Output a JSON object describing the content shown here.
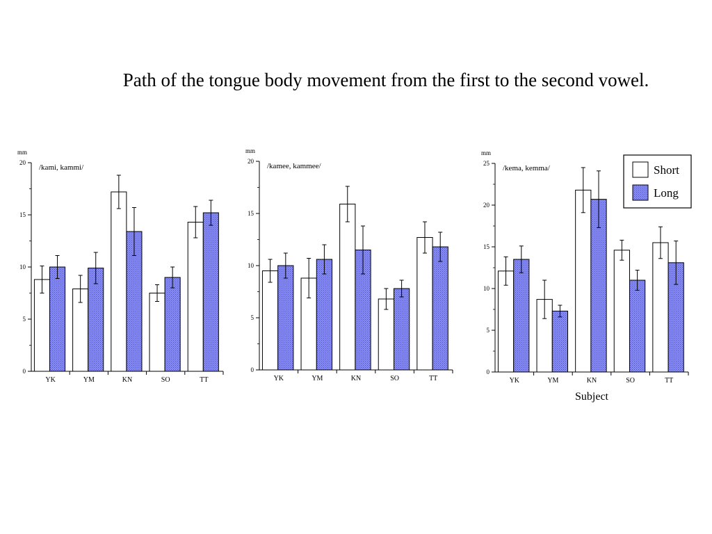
{
  "page": {
    "title": "Path of the tongue body movement from the first to the second vowel."
  },
  "colors": {
    "short": "#ffffff",
    "long": "#8a8ef0",
    "long_pattern_dot": "#4a4fd6",
    "stroke": "#000000"
  },
  "legend": {
    "placement": "top-right",
    "items": [
      "Short",
      "Long"
    ]
  },
  "chart_data": [
    {
      "type": "bar",
      "title": "/kami, kammi/",
      "ylabel": "mm",
      "xlabel": "",
      "categories": [
        "YK",
        "YM",
        "KN",
        "SO",
        "TT"
      ],
      "ylim": [
        0,
        20
      ],
      "yticks": [
        "0",
        "5",
        "10",
        "15",
        "20"
      ],
      "series": [
        {
          "name": "Short",
          "values": [
            8.8,
            7.9,
            17.2,
            7.5,
            14.3
          ],
          "errors": [
            1.3,
            1.3,
            1.6,
            0.8,
            1.5
          ]
        },
        {
          "name": "Long",
          "values": [
            10.0,
            9.9,
            13.4,
            9.0,
            15.2
          ],
          "errors": [
            1.1,
            1.5,
            2.3,
            1.0,
            1.2
          ]
        }
      ]
    },
    {
      "type": "bar",
      "title": "/kamee, kammee/",
      "ylabel": "mm",
      "xlabel": "",
      "categories": [
        "YK",
        "YM",
        "KN",
        "SO",
        "TT"
      ],
      "ylim": [
        0,
        20
      ],
      "yticks": [
        "0",
        "5",
        "10",
        "15",
        "20"
      ],
      "series": [
        {
          "name": "Short",
          "values": [
            9.5,
            8.8,
            15.9,
            6.8,
            12.7
          ],
          "errors": [
            1.1,
            1.9,
            1.7,
            1.0,
            1.5
          ]
        },
        {
          "name": "Long",
          "values": [
            10.0,
            10.6,
            11.5,
            7.8,
            11.8
          ],
          "errors": [
            1.2,
            1.4,
            2.3,
            0.8,
            1.4
          ]
        }
      ]
    },
    {
      "type": "bar",
      "title": "/kema, kemma/",
      "ylabel": "mm",
      "xlabel": "Subject",
      "categories": [
        "YK",
        "YM",
        "KN",
        "SO",
        "TT"
      ],
      "ylim": [
        0,
        25
      ],
      "yticks": [
        "0",
        "5",
        "10",
        "15",
        "20",
        "25"
      ],
      "series": [
        {
          "name": "Short",
          "values": [
            12.1,
            8.7,
            21.8,
            14.6,
            15.5
          ],
          "errors": [
            1.7,
            2.3,
            2.7,
            1.2,
            1.9
          ]
        },
        {
          "name": "Long",
          "values": [
            13.5,
            7.3,
            20.7,
            11.0,
            13.1
          ],
          "errors": [
            1.6,
            0.7,
            3.4,
            1.2,
            2.6
          ]
        }
      ]
    }
  ]
}
